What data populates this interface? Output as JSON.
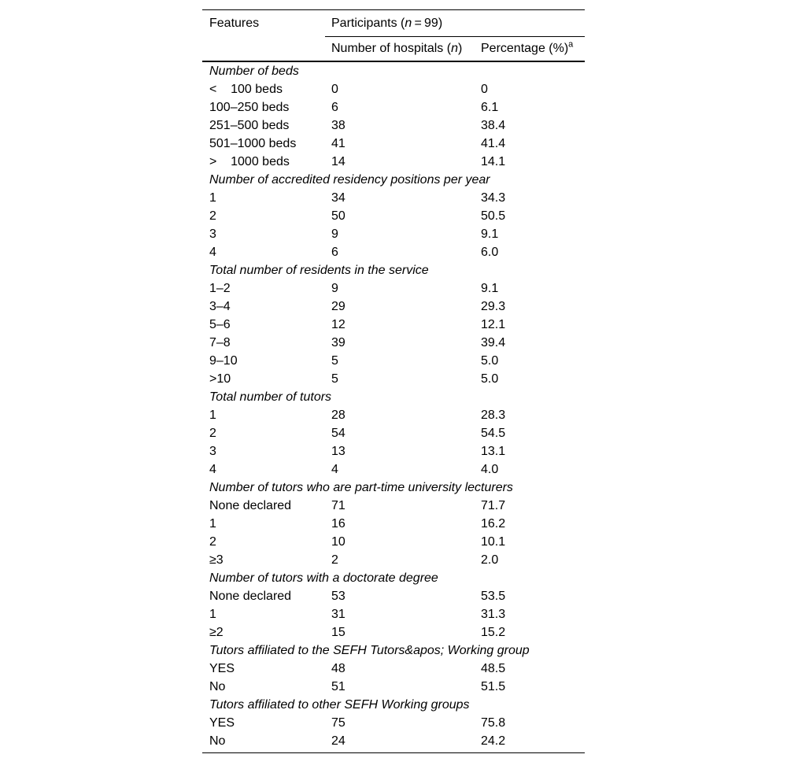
{
  "page": {
    "background_color": "#ffffff",
    "text_color": "#000000",
    "rule_color": "#000000"
  },
  "table": {
    "header": {
      "features": "Features",
      "participants": {
        "pre": "Participants (",
        "italic_n": "n",
        "post": " = 99)"
      },
      "hospitals": {
        "pre": "Number of hospitals (",
        "italic_n": "n",
        "post": ")"
      },
      "percentage": {
        "text": "Percentage (%)",
        "footnote_marker": "a"
      }
    },
    "rows": [
      {
        "type": "section",
        "label": "Number of beds"
      },
      {
        "type": "data",
        "feature": "<    100 beds",
        "n": "0",
        "pct": "0"
      },
      {
        "type": "data",
        "feature": "100–250 beds",
        "n": "6",
        "pct": "6.1"
      },
      {
        "type": "data",
        "feature": "251–500 beds",
        "n": "38",
        "pct": "38.4"
      },
      {
        "type": "data",
        "feature": "501–1000 beds",
        "n": "41",
        "pct": "41.4"
      },
      {
        "type": "data",
        "feature": ">    1000 beds",
        "n": "14",
        "pct": "14.1"
      },
      {
        "type": "section",
        "label": "Number of accredited residency positions per year"
      },
      {
        "type": "data",
        "feature": "1",
        "n": "34",
        "pct": "34.3"
      },
      {
        "type": "data",
        "feature": "2",
        "n": "50",
        "pct": "50.5"
      },
      {
        "type": "data",
        "feature": "3",
        "n": "9",
        "pct": "9.1"
      },
      {
        "type": "data",
        "feature": "4",
        "n": "6",
        "pct": "6.0"
      },
      {
        "type": "section",
        "label": "Total number of residents in the service"
      },
      {
        "type": "data",
        "feature": "1–2",
        "n": "9",
        "pct": "9.1"
      },
      {
        "type": "data",
        "feature": "3–4",
        "n": "29",
        "pct": "29.3"
      },
      {
        "type": "data",
        "feature": "5–6",
        "n": "12",
        "pct": "12.1"
      },
      {
        "type": "data",
        "feature": "7–8",
        "n": "39",
        "pct": "39.4"
      },
      {
        "type": "data",
        "feature": "9–10",
        "n": "5",
        "pct": "5.0"
      },
      {
        "type": "data",
        "feature": ">10",
        "n": "5",
        "pct": "5.0"
      },
      {
        "type": "section",
        "label": "Total number of tutors"
      },
      {
        "type": "data",
        "feature": "1",
        "n": "28",
        "pct": "28.3"
      },
      {
        "type": "data",
        "feature": "2",
        "n": "54",
        "pct": "54.5"
      },
      {
        "type": "data",
        "feature": "3",
        "n": "13",
        "pct": "13.1"
      },
      {
        "type": "data",
        "feature": "4",
        "n": "4",
        "pct": "4.0"
      },
      {
        "type": "section",
        "label": "Number of tutors who are part-time university lecturers"
      },
      {
        "type": "data",
        "feature": "None declared",
        "n": "71",
        "pct": "71.7"
      },
      {
        "type": "data",
        "feature": "1",
        "n": "16",
        "pct": "16.2"
      },
      {
        "type": "data",
        "feature": "2",
        "n": "10",
        "pct": "10.1"
      },
      {
        "type": "data",
        "feature": "≥3",
        "n": "2",
        "pct": "2.0"
      },
      {
        "type": "section",
        "label": "Number of tutors with a doctorate degree"
      },
      {
        "type": "data",
        "feature": "None declared",
        "n": "53",
        "pct": "53.5"
      },
      {
        "type": "data",
        "feature": "1",
        "n": "31",
        "pct": "31.3"
      },
      {
        "type": "data",
        "feature": "≥2",
        "n": "15",
        "pct": "15.2"
      },
      {
        "type": "section",
        "label": "Tutors affiliated to the SEFH Tutors&apos; Working group"
      },
      {
        "type": "data",
        "feature": "YES",
        "n": "48",
        "pct": "48.5"
      },
      {
        "type": "data",
        "feature": "No",
        "n": "51",
        "pct": "51.5"
      },
      {
        "type": "section",
        "label": "Tutors affiliated to other SEFH Working groups"
      },
      {
        "type": "data",
        "feature": "YES",
        "n": "75",
        "pct": "75.8"
      },
      {
        "type": "data",
        "feature": "No",
        "n": "24",
        "pct": "24.2"
      }
    ]
  }
}
